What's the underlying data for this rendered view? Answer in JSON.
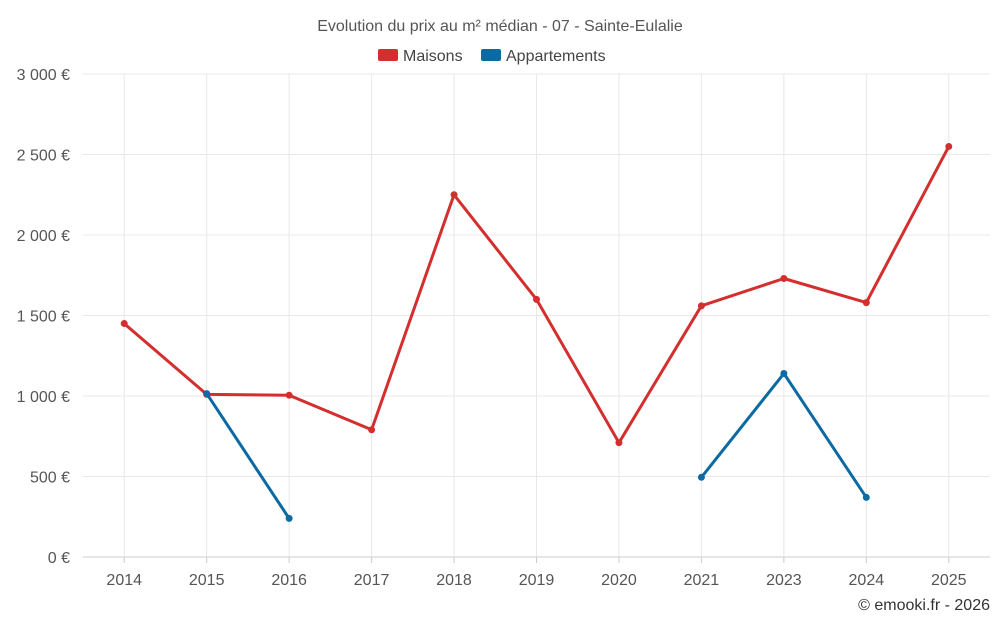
{
  "chart_data": {
    "type": "line",
    "title": "Evolution du prix au m² médian - 07 - Sainte-Eulalie",
    "categories": [
      "2014",
      "2015",
      "2016",
      "2017",
      "2018",
      "2019",
      "2020",
      "2021",
      "2023",
      "2024",
      "2025"
    ],
    "series": [
      {
        "name": "Maisons",
        "color": "#d32f2f",
        "values": [
          1450,
          1010,
          1005,
          790,
          2250,
          1600,
          710,
          1560,
          1730,
          1580,
          2550
        ]
      },
      {
        "name": "Appartements",
        "color": "#0a6aa1",
        "values": [
          null,
          1015,
          240,
          null,
          null,
          null,
          null,
          495,
          1140,
          370,
          null
        ]
      }
    ],
    "ylim": [
      0,
      3000
    ],
    "yticks": [
      0,
      500,
      1000,
      1500,
      2000,
      2500,
      3000
    ],
    "ytick_labels": [
      "0 €",
      "500 €",
      "1 000 €",
      "1 500 €",
      "2 000 €",
      "2 500 €",
      "3 000 €"
    ],
    "xlabel": "",
    "ylabel": "",
    "legend_position": "top-center",
    "grid": true
  },
  "credit": "© emooki.fr - 2026"
}
